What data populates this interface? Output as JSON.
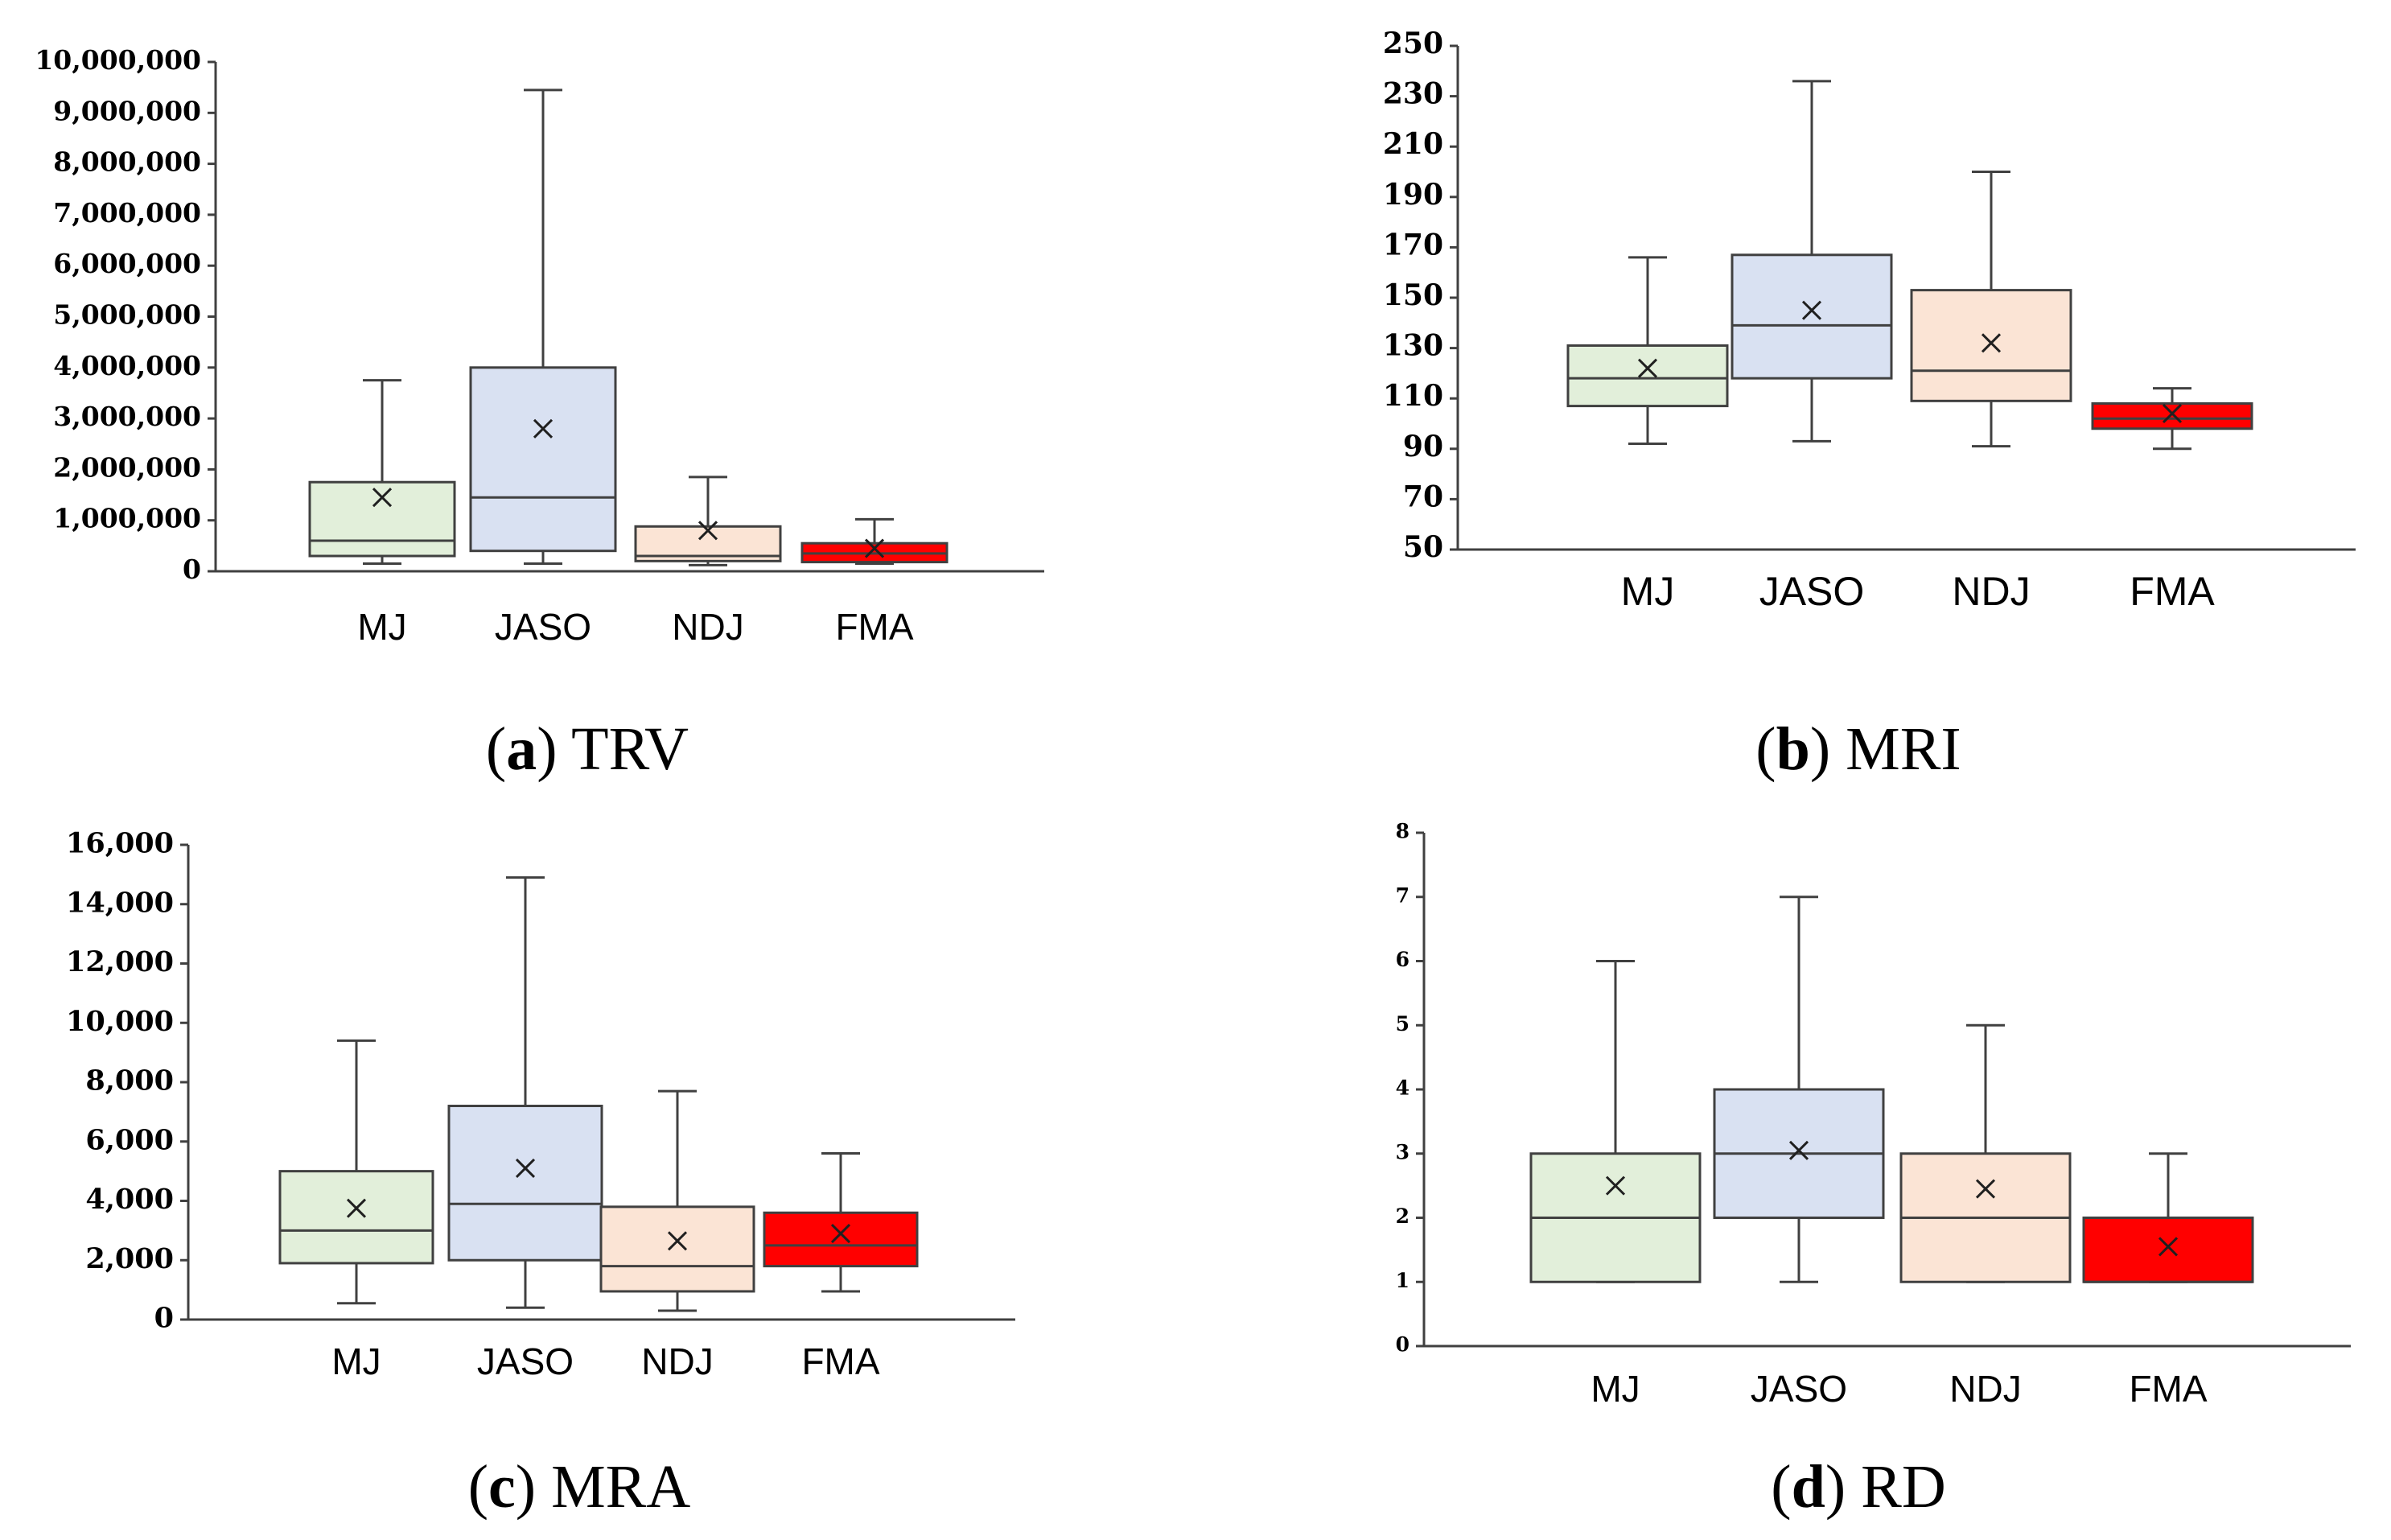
{
  "figure": {
    "panels": [
      {
        "id": "a",
        "caption_letter": "a",
        "caption_title": "TRV"
      },
      {
        "id": "b",
        "caption_letter": "b",
        "caption_title": "MRI"
      },
      {
        "id": "c",
        "caption_letter": "c",
        "caption_title": "MRA"
      },
      {
        "id": "d",
        "caption_letter": "d",
        "caption_title": "RD"
      }
    ]
  },
  "chart_data": [
    {
      "type": "box",
      "title": "TRV",
      "categories": [
        "MJ",
        "JASO",
        "NDJ",
        "FMA"
      ],
      "colors": [
        "#e2efda",
        "#d9e1f2",
        "#fbe4d5",
        "#ff0000"
      ],
      "ylim": [
        0,
        10000000
      ],
      "yticks": [
        0,
        1000000,
        2000000,
        3000000,
        4000000,
        5000000,
        6000000,
        7000000,
        8000000,
        9000000,
        10000000
      ],
      "ytick_labels": [
        "0",
        "1,000,000",
        "2,000,000",
        "3,000,000",
        "4,000,000",
        "5,000,000",
        "6,000,000",
        "7,000,000",
        "8,000,000",
        "9,000,000",
        "10,000,000"
      ],
      "boxes": [
        {
          "min": 150000,
          "q1": 300000,
          "median": 600000,
          "q3": 1750000,
          "max": 3750000,
          "mean": 1450000
        },
        {
          "min": 150000,
          "q1": 400000,
          "median": 1450000,
          "q3": 4000000,
          "max": 9450000,
          "mean": 2800000
        },
        {
          "min": 120000,
          "q1": 200000,
          "median": 300000,
          "q3": 880000,
          "max": 1850000,
          "mean": 800000
        },
        {
          "min": 150000,
          "q1": 180000,
          "median": 350000,
          "q3": 550000,
          "max": 1020000,
          "mean": 450000
        }
      ]
    },
    {
      "type": "box",
      "title": "MRI",
      "categories": [
        "MJ",
        "JASO",
        "NDJ",
        "FMA"
      ],
      "colors": [
        "#e2efda",
        "#d9e1f2",
        "#fbe4d5",
        "#ff0000"
      ],
      "ylim": [
        50,
        250
      ],
      "yticks": [
        50,
        70,
        90,
        110,
        130,
        150,
        170,
        190,
        210,
        230,
        250
      ],
      "ytick_labels": [
        "50",
        "70",
        "90",
        "110",
        "130",
        "150",
        "170",
        "190",
        "210",
        "230",
        "250"
      ],
      "boxes": [
        {
          "min": 92,
          "q1": 107,
          "median": 118,
          "q3": 131,
          "max": 166,
          "mean": 122
        },
        {
          "min": 93,
          "q1": 118,
          "median": 139,
          "q3": 167,
          "max": 236,
          "mean": 145
        },
        {
          "min": 91,
          "q1": 109,
          "median": 121,
          "q3": 153,
          "max": 200,
          "mean": 132
        },
        {
          "min": 90,
          "q1": 98,
          "median": 102,
          "q3": 108,
          "max": 114,
          "mean": 104
        }
      ]
    },
    {
      "type": "box",
      "title": "MRA",
      "categories": [
        "MJ",
        "JASO",
        "NDJ",
        "FMA"
      ],
      "colors": [
        "#e2efda",
        "#d9e1f2",
        "#fbe4d5",
        "#ff0000"
      ],
      "ylim": [
        0,
        16000
      ],
      "yticks": [
        0,
        2000,
        4000,
        6000,
        8000,
        10000,
        12000,
        14000,
        16000
      ],
      "ytick_labels": [
        "0",
        "2,000",
        "4,000",
        "6,000",
        "8,000",
        "10,000",
        "12,000",
        "14,000",
        "16,000"
      ],
      "boxes": [
        {
          "min": 550,
          "q1": 1900,
          "median": 3000,
          "q3": 5000,
          "max": 9400,
          "mean": 3750
        },
        {
          "min": 400,
          "q1": 2000,
          "median": 3900,
          "q3": 7200,
          "max": 14900,
          "mean": 5100
        },
        {
          "min": 300,
          "q1": 950,
          "median": 1800,
          "q3": 3800,
          "max": 7700,
          "mean": 2650
        },
        {
          "min": 950,
          "q1": 1800,
          "median": 2500,
          "q3": 3600,
          "max": 5600,
          "mean": 2900
        }
      ]
    },
    {
      "type": "box",
      "title": "RD",
      "categories": [
        "MJ",
        "JASO",
        "NDJ",
        "FMA"
      ],
      "colors": [
        "#e2efda",
        "#d9e1f2",
        "#fbe4d5",
        "#ff0000"
      ],
      "ylim": [
        0,
        8
      ],
      "yticks": [
        0,
        1,
        2,
        3,
        4,
        5,
        6,
        7,
        8
      ],
      "ytick_labels": [
        "0",
        "1",
        "2",
        "3",
        "4",
        "5",
        "6",
        "7",
        "8"
      ],
      "boxes": [
        {
          "min": 1,
          "q1": 1,
          "median": 2,
          "q3": 3,
          "max": 6,
          "mean": 2.5
        },
        {
          "min": 1,
          "q1": 2,
          "median": 3,
          "q3": 4,
          "max": 7,
          "mean": 3.05
        },
        {
          "min": 1,
          "q1": 1,
          "median": 2,
          "q3": 3,
          "max": 5,
          "mean": 2.45
        },
        {
          "min": 1,
          "q1": 1,
          "median": 1,
          "q3": 2,
          "max": 3,
          "mean": 1.55
        }
      ]
    }
  ]
}
